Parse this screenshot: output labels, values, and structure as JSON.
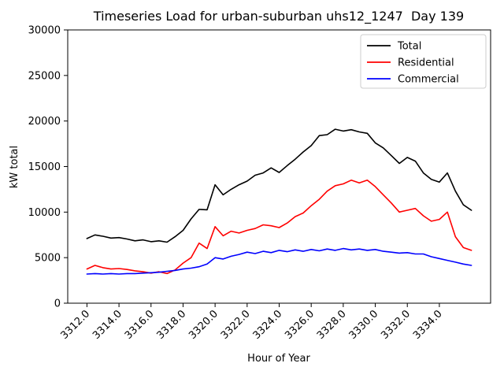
{
  "chart_data": {
    "type": "line",
    "title": "Timeseries Load for urban-suburban uhs12_1247  Day 139",
    "xlabel": "Hour of Year",
    "ylabel": "kW total",
    "xlim": [
      3310.8,
      3337.2
    ],
    "ylim": [
      0,
      30000
    ],
    "xticks": [
      3312,
      3314,
      3316,
      3318,
      3320,
      3322,
      3324,
      3326,
      3328,
      3330,
      3332,
      3334
    ],
    "xtick_labels": [
      "3312.0",
      "3314.0",
      "3316.0",
      "3318.0",
      "3320.0",
      "3322.0",
      "3324.0",
      "3326.0",
      "3328.0",
      "3330.0",
      "3332.0",
      "3334.0"
    ],
    "yticks": [
      0,
      5000,
      10000,
      15000,
      20000,
      25000,
      30000
    ],
    "ytick_labels": [
      "0",
      "5000",
      "10000",
      "15000",
      "20000",
      "25000",
      "30000"
    ],
    "grid": false,
    "legend_position": "upper right",
    "x_start": 3312,
    "x_step": 0.5,
    "series": [
      {
        "name": "Total",
        "color": "#000000",
        "values": [
          7100,
          7500,
          7350,
          7150,
          7200,
          7050,
          6850,
          6950,
          6750,
          6850,
          6700,
          7300,
          8000,
          9250,
          10300,
          10250,
          13000,
          11900,
          12500,
          13000,
          13400,
          14050,
          14300,
          14850,
          14350,
          15100,
          15800,
          16600,
          17300,
          18400,
          18500,
          19100,
          18900,
          19050,
          18800,
          18650,
          17600,
          17050,
          16200,
          15350,
          16000,
          15600,
          14300,
          13600,
          13300,
          14300,
          12300,
          10800,
          10200
        ]
      },
      {
        "name": "Residential",
        "color": "#ff0000",
        "values": [
          3750,
          4150,
          3900,
          3750,
          3800,
          3700,
          3550,
          3450,
          3300,
          3450,
          3250,
          3650,
          4400,
          5000,
          6600,
          6000,
          8400,
          7400,
          7900,
          7700,
          8000,
          8200,
          8600,
          8500,
          8300,
          8800,
          9500,
          9900,
          10700,
          11400,
          12300,
          12900,
          13100,
          13500,
          13200,
          13500,
          12800,
          11900,
          11000,
          10000,
          10200,
          10400,
          9600,
          9000,
          9200,
          10000,
          7300,
          6100,
          5800
        ]
      },
      {
        "name": "Commercial",
        "color": "#0000ff",
        "values": [
          3200,
          3250,
          3200,
          3250,
          3200,
          3250,
          3250,
          3300,
          3350,
          3400,
          3500,
          3600,
          3750,
          3850,
          4000,
          4300,
          5000,
          4850,
          5150,
          5350,
          5600,
          5450,
          5700,
          5550,
          5800,
          5650,
          5850,
          5700,
          5900,
          5750,
          5950,
          5800,
          6000,
          5850,
          5950,
          5800,
          5900,
          5700,
          5600,
          5500,
          5550,
          5400,
          5400,
          5100,
          4900,
          4700,
          4500,
          4300,
          4150
        ]
      }
    ]
  }
}
